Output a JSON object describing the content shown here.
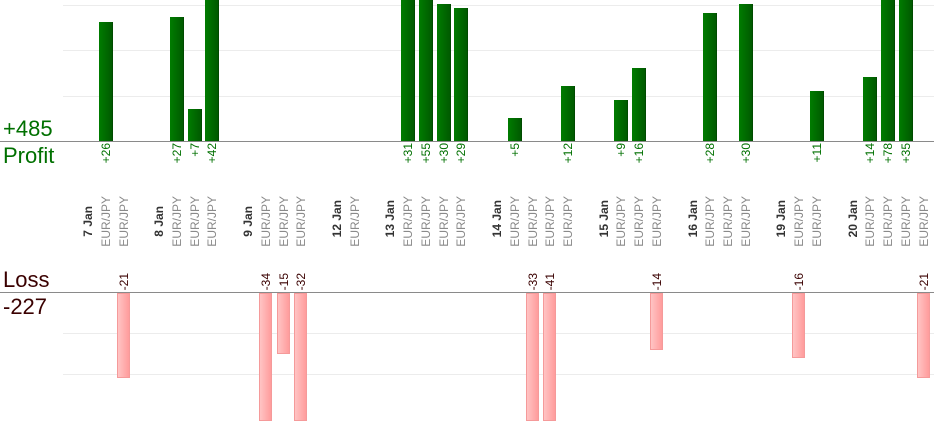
{
  "summary": {
    "profit_total": "+485",
    "profit_label": "Profit",
    "loss_label": "Loss",
    "loss_total": "-227"
  },
  "colors": {
    "profit": "#007000",
    "loss": "#ff9c9c",
    "loss_text": "#3a0000",
    "pair_text": "#8a8a8a",
    "date_text": "#333333"
  },
  "chart_data": {
    "type": "bar",
    "title": "",
    "xlabel": "",
    "ylabel": "",
    "days": [
      {
        "date": "7 Jan",
        "trades": [
          {
            "pair": "EUR/JPY",
            "value": 26,
            "label": "+26"
          },
          {
            "pair": "EUR/JPY",
            "value": -21,
            "label": "-21"
          }
        ]
      },
      {
        "date": "8 Jan",
        "trades": [
          {
            "pair": "EUR/JPY",
            "value": 27,
            "label": "+27"
          },
          {
            "pair": "EUR/JPY",
            "value": 7,
            "label": "+7"
          },
          {
            "pair": "EUR/JPY",
            "value": 42,
            "label": "+42"
          }
        ]
      },
      {
        "date": "9 Jan",
        "trades": [
          {
            "pair": "EUR/JPY",
            "value": -34,
            "label": "-34"
          },
          {
            "pair": "EUR/JPY",
            "value": -15,
            "label": "-15"
          },
          {
            "pair": "EUR/JPY",
            "value": -32,
            "label": "-32"
          }
        ]
      },
      {
        "date": "12 Jan",
        "trades": [
          {
            "pair": "EUR/JPY",
            "value": null,
            "label": null
          }
        ]
      },
      {
        "date": "13 Jan",
        "trades": [
          {
            "pair": "EUR/JPY",
            "value": 31,
            "label": "+31"
          },
          {
            "pair": "EUR/JPY",
            "value": 55,
            "label": "+55"
          },
          {
            "pair": "EUR/JPY",
            "value": 30,
            "label": "+30"
          },
          {
            "pair": "EUR/JPY",
            "value": 29,
            "label": "+29"
          }
        ]
      },
      {
        "date": "14 Jan",
        "trades": [
          {
            "pair": "EUR/JPY",
            "value": 5,
            "label": "+5"
          },
          {
            "pair": "EUR/JPY",
            "value": -33,
            "label": "-33"
          },
          {
            "pair": "EUR/JPY",
            "value": -41,
            "label": "-41"
          },
          {
            "pair": "EUR/JPY",
            "value": 12,
            "label": "+12"
          }
        ]
      },
      {
        "date": "15 Jan",
        "trades": [
          {
            "pair": "EUR/JPY",
            "value": 9,
            "label": "+9"
          },
          {
            "pair": "EUR/JPY",
            "value": 16,
            "label": "+16"
          },
          {
            "pair": "EUR/JPY",
            "value": -14,
            "label": "-14"
          }
        ]
      },
      {
        "date": "16 Jan",
        "trades": [
          {
            "pair": "EUR/JPY",
            "value": 28,
            "label": "+28"
          },
          {
            "pair": "EUR/JPY",
            "value": null,
            "label": null
          },
          {
            "pair": "EUR/JPY",
            "value": 30,
            "label": "+30"
          }
        ]
      },
      {
        "date": "19 Jan",
        "trades": [
          {
            "pair": "EUR/JPY",
            "value": -16,
            "label": "-16"
          },
          {
            "pair": "EUR/JPY",
            "value": 11,
            "label": "+11"
          }
        ]
      },
      {
        "date": "20 Jan",
        "trades": [
          {
            "pair": "EUR/JPY",
            "value": 14,
            "label": "+14"
          },
          {
            "pair": "EUR/JPY",
            "value": 78,
            "label": "+78"
          },
          {
            "pair": "EUR/JPY",
            "value": 35,
            "label": "+35"
          },
          {
            "pair": "EUR/JPY",
            "value": -21,
            "label": "-21"
          }
        ]
      }
    ],
    "profit_grid_step": 10,
    "loss_grid_step": 10
  }
}
